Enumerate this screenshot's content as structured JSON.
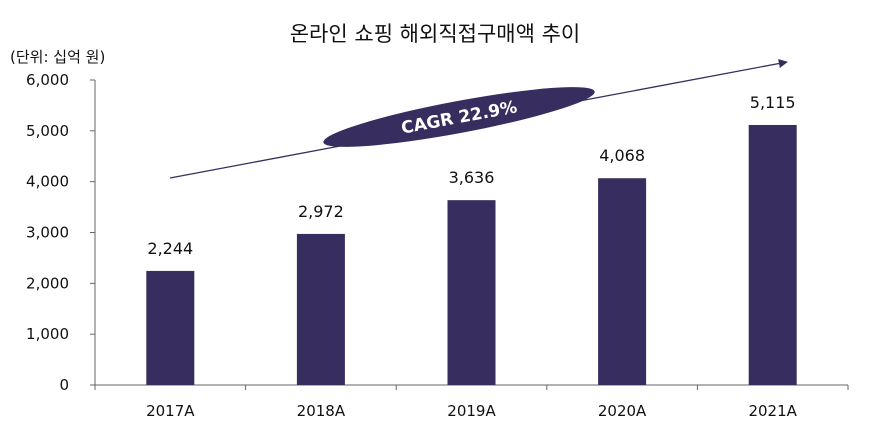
{
  "chart_data": {
    "type": "bar",
    "title": "온라인 쇼핑 해외직접구매액 추이",
    "unit_label": "(단위: 십억 원)",
    "categories": [
      "2017A",
      "2018A",
      "2019A",
      "2020A",
      "2021A"
    ],
    "values": [
      2244,
      2972,
      3636,
      4068,
      5115
    ],
    "value_labels": [
      "2,244",
      "2,972",
      "3,636",
      "4,068",
      "5,115"
    ],
    "yticks": [
      "0",
      "1,000",
      "2,000",
      "3,000",
      "4,000",
      "5,000",
      "6,000"
    ],
    "ylim": [
      0,
      6000
    ],
    "grid": false,
    "annotation": "CAGR 22.9%",
    "colors": {
      "bar": "#372d5e",
      "trend": "#372d5e",
      "annotation_fill": "#372d5e",
      "annotation_text": "#ffffff"
    }
  }
}
